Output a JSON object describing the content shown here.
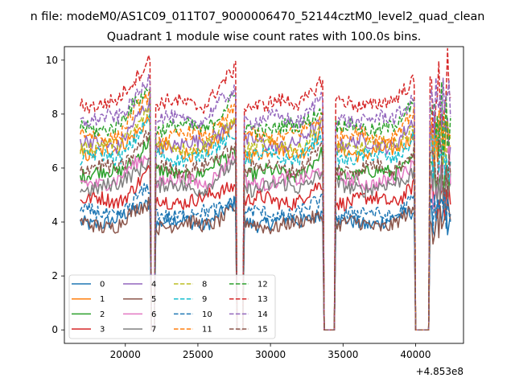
{
  "chart_data": {
    "type": "line",
    "suptitle": "n file: modeM0/AS1C09_011T07_9000006470_52144cztM0_level2_quad_clean",
    "title": "Quadrant 1 module wise count rates with 100.0s bins.",
    "xlabel": "",
    "ylabel": "",
    "x_offset_label": "+4.853e8",
    "xlim": [
      15800,
      43300
    ],
    "ylim": [
      -0.5,
      10.5
    ],
    "x_ticks": [
      20000,
      25000,
      30000,
      35000,
      40000
    ],
    "x_tick_labels": [
      "20000",
      "25000",
      "30000",
      "35000",
      "40000"
    ],
    "y_ticks": [
      0,
      2,
      4,
      6,
      8,
      10
    ],
    "y_tick_labels": [
      "0",
      "2",
      "4",
      "6",
      "8",
      "10"
    ],
    "x_range": [
      16900,
      42400
    ],
    "bin_seconds": 100,
    "gaps": [
      [
        21800,
        22000
      ],
      [
        27700,
        28100
      ],
      [
        33700,
        34400
      ],
      [
        40000,
        40900
      ]
    ],
    "series": [
      {
        "name": "0",
        "color": "#1f77b4",
        "style": "solid",
        "level": 4.0
      },
      {
        "name": "1",
        "color": "#ff7f0e",
        "style": "solid",
        "level": 6.6
      },
      {
        "name": "2",
        "color": "#2ca02c",
        "style": "solid",
        "level": 5.8
      },
      {
        "name": "3",
        "color": "#d62728",
        "style": "solid",
        "level": 4.8
      },
      {
        "name": "4",
        "color": "#9467bd",
        "style": "solid",
        "level": 6.9
      },
      {
        "name": "5",
        "color": "#8c564b",
        "style": "solid",
        "level": 3.9
      },
      {
        "name": "6",
        "color": "#e377c2",
        "style": "solid",
        "level": 5.5
      },
      {
        "name": "7",
        "color": "#7f7f7f",
        "style": "solid",
        "level": 5.3
      },
      {
        "name": "8",
        "color": "#bcbd22",
        "style": "dashed",
        "level": 6.8
      },
      {
        "name": "9",
        "color": "#17becf",
        "style": "dashed",
        "level": 6.4
      },
      {
        "name": "10",
        "color": "#1f77b4",
        "style": "dashed",
        "level": 4.3
      },
      {
        "name": "11",
        "color": "#ff7f0e",
        "style": "dashed",
        "level": 7.2
      },
      {
        "name": "12",
        "color": "#2ca02c",
        "style": "dashed",
        "level": 7.5
      },
      {
        "name": "13",
        "color": "#d62728",
        "style": "dashed",
        "level": 8.4
      },
      {
        "name": "14",
        "color": "#9467bd",
        "style": "dashed",
        "level": 7.8
      },
      {
        "name": "15",
        "color": "#8c564b",
        "style": "dashed",
        "level": 6.0
      }
    ],
    "legend_position": "lower-left"
  }
}
